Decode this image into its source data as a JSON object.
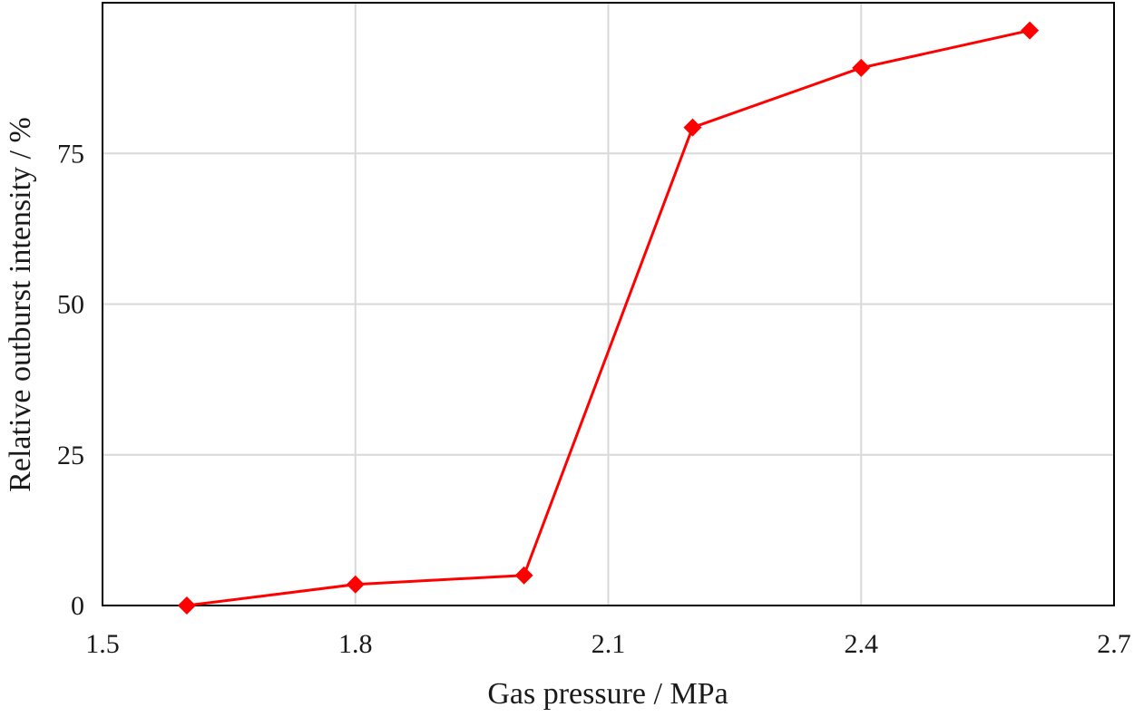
{
  "chart_data": {
    "type": "line",
    "title": "",
    "xlabel": "Gas pressure / MPa",
    "ylabel": "Relative outburst intensity / %",
    "xlim": [
      1.5,
      2.7
    ],
    "ylim": [
      0,
      100
    ],
    "x_ticks": [
      "1.5",
      "1.8",
      "2.1",
      "2.4",
      "2.7"
    ],
    "y_ticks": [
      "0",
      "25",
      "50",
      "75"
    ],
    "grid": true,
    "legend": "none",
    "series": [
      {
        "color": "#ff0000",
        "marker": "diamond",
        "x": [
          1.6,
          1.8,
          2.0,
          2.2,
          2.4,
          2.6
        ],
        "y": [
          0,
          3.5,
          5.0,
          79.3,
          89.2,
          95.4
        ]
      }
    ]
  }
}
